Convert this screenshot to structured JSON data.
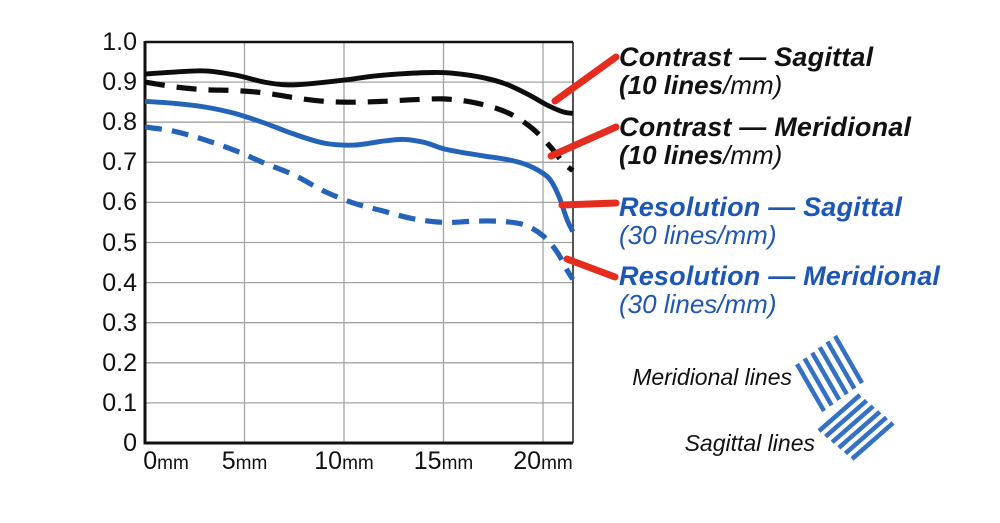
{
  "colors": {
    "curve_black": "#0d0d0d",
    "curve_blue": "#2563b8",
    "text_blue": "#1e56b4",
    "callout_red": "#e52d1f",
    "grid_gray": "#a3a3a3",
    "icon_blue": "#3470c4"
  },
  "chart_data": {
    "type": "line",
    "title": "",
    "xlabel": "",
    "ylabel": "",
    "x_unit": "mm",
    "xlim": [
      0,
      21.5
    ],
    "ylim": [
      0,
      1.0
    ],
    "grid": true,
    "x_ticks": [
      {
        "num": "0",
        "unit": "mm",
        "mm": 0
      },
      {
        "num": "5",
        "unit": "mm",
        "mm": 5
      },
      {
        "num": "10",
        "unit": "mm",
        "mm": 10
      },
      {
        "num": "15",
        "unit": "mm",
        "mm": 15
      },
      {
        "num": "20",
        "unit": "mm",
        "mm": 20
      }
    ],
    "y_ticks": [
      {
        "label": "1.0",
        "v": 1.0
      },
      {
        "label": "0.9",
        "v": 0.9
      },
      {
        "label": "0.8",
        "v": 0.8
      },
      {
        "label": "0.7",
        "v": 0.7
      },
      {
        "label": "0.6",
        "v": 0.6
      },
      {
        "label": "0.5",
        "v": 0.5
      },
      {
        "label": "0.4",
        "v": 0.4
      },
      {
        "label": "0.3",
        "v": 0.3
      },
      {
        "label": "0.2",
        "v": 0.2
      },
      {
        "label": "0.1",
        "v": 0.1
      },
      {
        "label": "0",
        "v": 0.0
      }
    ],
    "series": [
      {
        "id": "contrast-sagittal",
        "name": "Contrast — Sagittal (10 lines/mm)",
        "color": "black",
        "dash": false,
        "x": [
          0,
          1.5,
          3,
          4.5,
          6,
          7.2,
          8.5,
          10,
          11.5,
          13,
          14.5,
          15.5,
          17,
          18.2,
          19.3,
          20.2,
          21,
          21.5
        ],
        "y": [
          0.92,
          0.925,
          0.928,
          0.918,
          0.9,
          0.893,
          0.897,
          0.905,
          0.915,
          0.921,
          0.924,
          0.922,
          0.911,
          0.894,
          0.868,
          0.843,
          0.826,
          0.822
        ]
      },
      {
        "id": "contrast-meridional",
        "name": "Contrast — Meridional (10 lines/mm)",
        "color": "black",
        "dash": true,
        "x": [
          0,
          1.5,
          3,
          4.5,
          6,
          7.5,
          9,
          10.5,
          12,
          13.5,
          15,
          16.3,
          17.5,
          18.5,
          19.5,
          20.4,
          21,
          21.5
        ],
        "y": [
          0.9,
          0.888,
          0.881,
          0.879,
          0.873,
          0.861,
          0.852,
          0.85,
          0.852,
          0.856,
          0.858,
          0.851,
          0.837,
          0.817,
          0.783,
          0.737,
          0.7,
          0.679
        ]
      },
      {
        "id": "resolution-sagittal",
        "name": "Resolution — Sagittal (30 lines/mm)",
        "color": "blue",
        "dash": false,
        "x": [
          0,
          1.5,
          3,
          4.5,
          6,
          7.5,
          9,
          10.5,
          12,
          13,
          14,
          15,
          16,
          17,
          18.5,
          19.5,
          20.3,
          20.8,
          21.2,
          21.5
        ],
        "y": [
          0.852,
          0.847,
          0.838,
          0.822,
          0.798,
          0.77,
          0.748,
          0.743,
          0.753,
          0.757,
          0.75,
          0.734,
          0.724,
          0.716,
          0.704,
          0.687,
          0.66,
          0.615,
          0.558,
          0.527
        ]
      },
      {
        "id": "resolution-meridional",
        "name": "Resolution — Meridional (30 lines/mm)",
        "color": "blue",
        "dash": true,
        "x": [
          0,
          1.5,
          3,
          4.5,
          6,
          7.5,
          9,
          10.5,
          12,
          13.5,
          15,
          16.5,
          17.7,
          19,
          20,
          20.7,
          21.2,
          21.5
        ],
        "y": [
          0.788,
          0.777,
          0.756,
          0.73,
          0.698,
          0.668,
          0.628,
          0.598,
          0.578,
          0.559,
          0.55,
          0.553,
          0.553,
          0.545,
          0.517,
          0.477,
          0.432,
          0.408
        ]
      }
    ]
  },
  "legend": {
    "entries": [
      {
        "title": "Contrast — Sagittal",
        "detail_bold": "(10 lines",
        "detail_regular": "/mm)",
        "color": "black"
      },
      {
        "title": "Contrast — Meridional",
        "detail_bold": "(10 lines",
        "detail_regular": "/mm)",
        "color": "black"
      },
      {
        "title": "Resolution — Sagittal",
        "detail_bold": "",
        "detail_regular": "(30 lines/mm)",
        "color": "blue"
      },
      {
        "title": "Resolution — Meridional",
        "detail_bold": "",
        "detail_regular": "(30 lines/mm)",
        "color": "blue"
      }
    ]
  },
  "annotations": {
    "meridional_label": "Meridional lines",
    "sagittal_label": "Sagittal lines"
  }
}
